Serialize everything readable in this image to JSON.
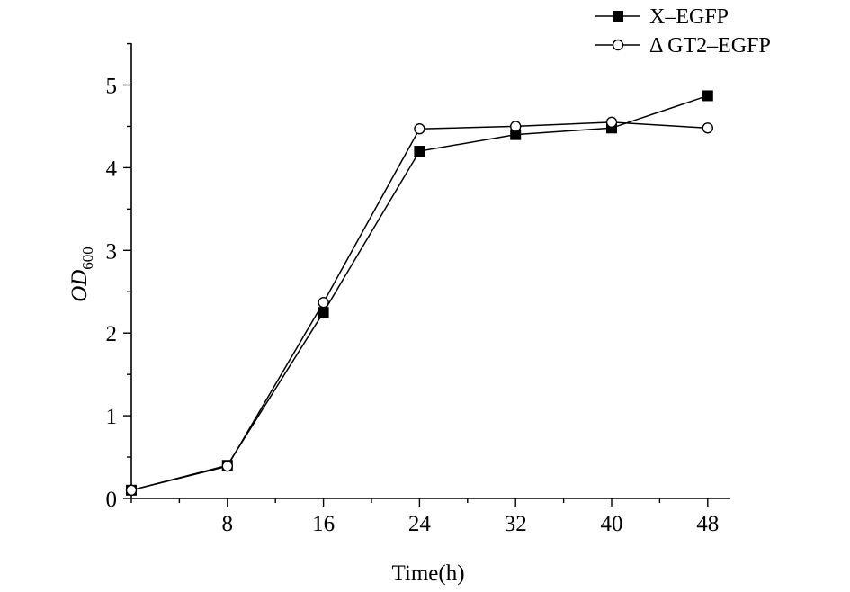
{
  "chart_data": {
    "type": "line",
    "xlabel": "Time(h)",
    "ylabel": {
      "main": "OD",
      "sub": "600"
    },
    "xlim": [
      0,
      50
    ],
    "ylim": [
      0,
      5.5
    ],
    "x_ticks": [
      8,
      16,
      24,
      32,
      40,
      48
    ],
    "y_ticks": [
      0,
      1,
      2,
      3,
      4,
      5
    ],
    "grid": false,
    "legend_position": "top-right",
    "series": [
      {
        "name": "X–EGFP",
        "marker": "filled-square",
        "color": "#000000",
        "x": [
          0,
          8,
          16,
          24,
          32,
          40,
          48
        ],
        "y": [
          0.1,
          0.4,
          2.25,
          4.2,
          4.4,
          4.48,
          4.87
        ]
      },
      {
        "name": "Δ GT2–EGFP",
        "marker": "open-circle",
        "color": "#000000",
        "x": [
          0,
          8,
          16,
          24,
          32,
          40,
          48
        ],
        "y": [
          0.1,
          0.39,
          2.37,
          4.47,
          4.5,
          4.55,
          4.48
        ]
      }
    ]
  }
}
